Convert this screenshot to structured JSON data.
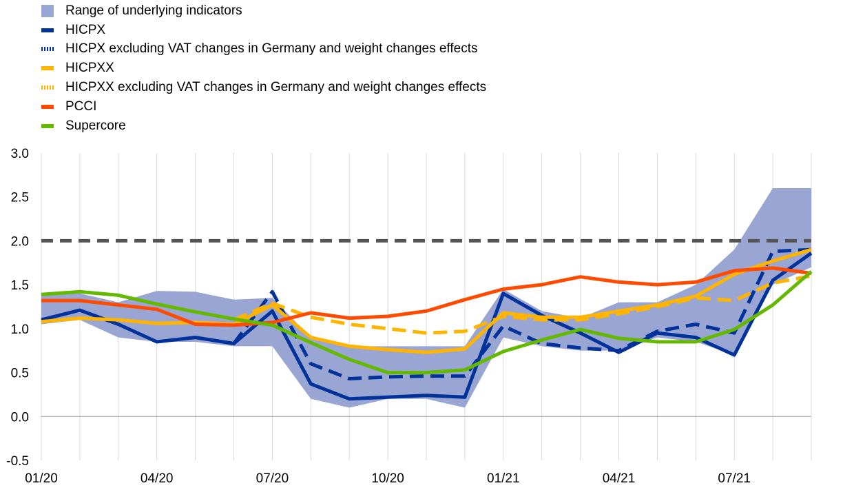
{
  "chart_data": {
    "type": "line",
    "title": "",
    "xlabel": "",
    "ylabel": "",
    "ylim": [
      -0.5,
      3.0
    ],
    "yticks": [
      "3.0",
      "2.5",
      "2.0",
      "1.5",
      "1.0",
      "0.5",
      "0.0",
      "-0.5"
    ],
    "ytick_values": [
      3.0,
      2.5,
      2.0,
      1.5,
      1.0,
      0.5,
      0.0,
      -0.5
    ],
    "x": [
      "2020-01",
      "2020-02",
      "2020-03",
      "2020-04",
      "2020-05",
      "2020-06",
      "2020-07",
      "2020-08",
      "2020-09",
      "2020-10",
      "2020-11",
      "2020-12",
      "2021-01",
      "2021-02",
      "2021-03",
      "2021-04",
      "2021-05",
      "2021-06",
      "2021-07",
      "2021-08",
      "2021-09"
    ],
    "xtick_labels": [
      "01/20",
      "04/20",
      "07/20",
      "10/20",
      "01/21",
      "04/21",
      "07/21"
    ],
    "xtick_index": [
      0,
      3,
      6,
      9,
      12,
      15,
      18
    ],
    "grid": "vertical",
    "legend_position": "top-left",
    "reference_line": {
      "value": 2.0,
      "style": "dashed",
      "color": "#555555"
    },
    "range": {
      "name": "Range of underlying indicators",
      "color": "#99a5d3",
      "upper": [
        1.4,
        1.4,
        1.3,
        1.43,
        1.42,
        1.33,
        1.35,
        0.9,
        0.8,
        0.8,
        0.8,
        0.8,
        1.45,
        1.2,
        1.12,
        1.3,
        1.3,
        1.5,
        1.9,
        2.6,
        2.6
      ],
      "lower": [
        1.05,
        1.1,
        0.9,
        0.85,
        0.85,
        0.8,
        0.8,
        0.2,
        0.1,
        0.2,
        0.2,
        0.1,
        0.9,
        0.8,
        0.75,
        0.75,
        0.9,
        0.85,
        0.7,
        1.5,
        1.7
      ]
    },
    "series": [
      {
        "name": "HICPX",
        "color": "#003299",
        "style": "solid",
        "values": [
          1.1,
          1.21,
          1.05,
          0.85,
          0.9,
          0.83,
          1.2,
          0.37,
          0.2,
          0.22,
          0.24,
          0.22,
          1.4,
          1.15,
          0.95,
          0.73,
          0.95,
          0.9,
          0.7,
          1.55,
          1.86
        ]
      },
      {
        "name": "HICPX excluding VAT changes in Germany and weight changes effects",
        "color": "#003299",
        "style": "dashed",
        "values": [
          null,
          null,
          null,
          null,
          null,
          0.83,
          1.42,
          0.6,
          0.43,
          0.45,
          0.46,
          0.46,
          1.03,
          0.83,
          0.78,
          0.75,
          0.97,
          1.05,
          0.95,
          1.88,
          1.9
        ]
      },
      {
        "name": "HICPXX",
        "color": "#ffb400",
        "style": "solid",
        "values": [
          1.08,
          1.12,
          1.1,
          1.06,
          1.07,
          1.05,
          1.27,
          0.9,
          0.8,
          0.76,
          0.73,
          0.77,
          1.18,
          1.13,
          1.13,
          1.2,
          1.27,
          1.37,
          1.62,
          1.77,
          1.9
        ]
      },
      {
        "name": "HICPXX excluding VAT changes in Germany and weight changes effects",
        "color": "#ffb400",
        "style": "dashed",
        "values": [
          null,
          null,
          null,
          null,
          null,
          1.1,
          1.29,
          1.13,
          1.05,
          1.0,
          0.95,
          0.97,
          1.14,
          1.1,
          1.1,
          1.17,
          1.25,
          1.35,
          1.32,
          1.52,
          1.6
        ]
      },
      {
        "name": "PCCI",
        "color": "#ff4b00",
        "style": "solid",
        "values": [
          1.32,
          1.32,
          1.27,
          1.22,
          1.05,
          1.04,
          1.07,
          1.18,
          1.12,
          1.14,
          1.2,
          1.33,
          1.45,
          1.5,
          1.59,
          1.53,
          1.5,
          1.53,
          1.66,
          1.69,
          1.63
        ]
      },
      {
        "name": "Supercore",
        "color": "#65b800",
        "style": "solid",
        "values": [
          1.39,
          1.42,
          1.38,
          1.28,
          1.19,
          1.11,
          1.04,
          0.84,
          0.65,
          0.5,
          0.5,
          0.53,
          0.74,
          0.87,
          0.99,
          0.89,
          0.85,
          0.85,
          0.99,
          1.27,
          1.65
        ]
      }
    ]
  }
}
